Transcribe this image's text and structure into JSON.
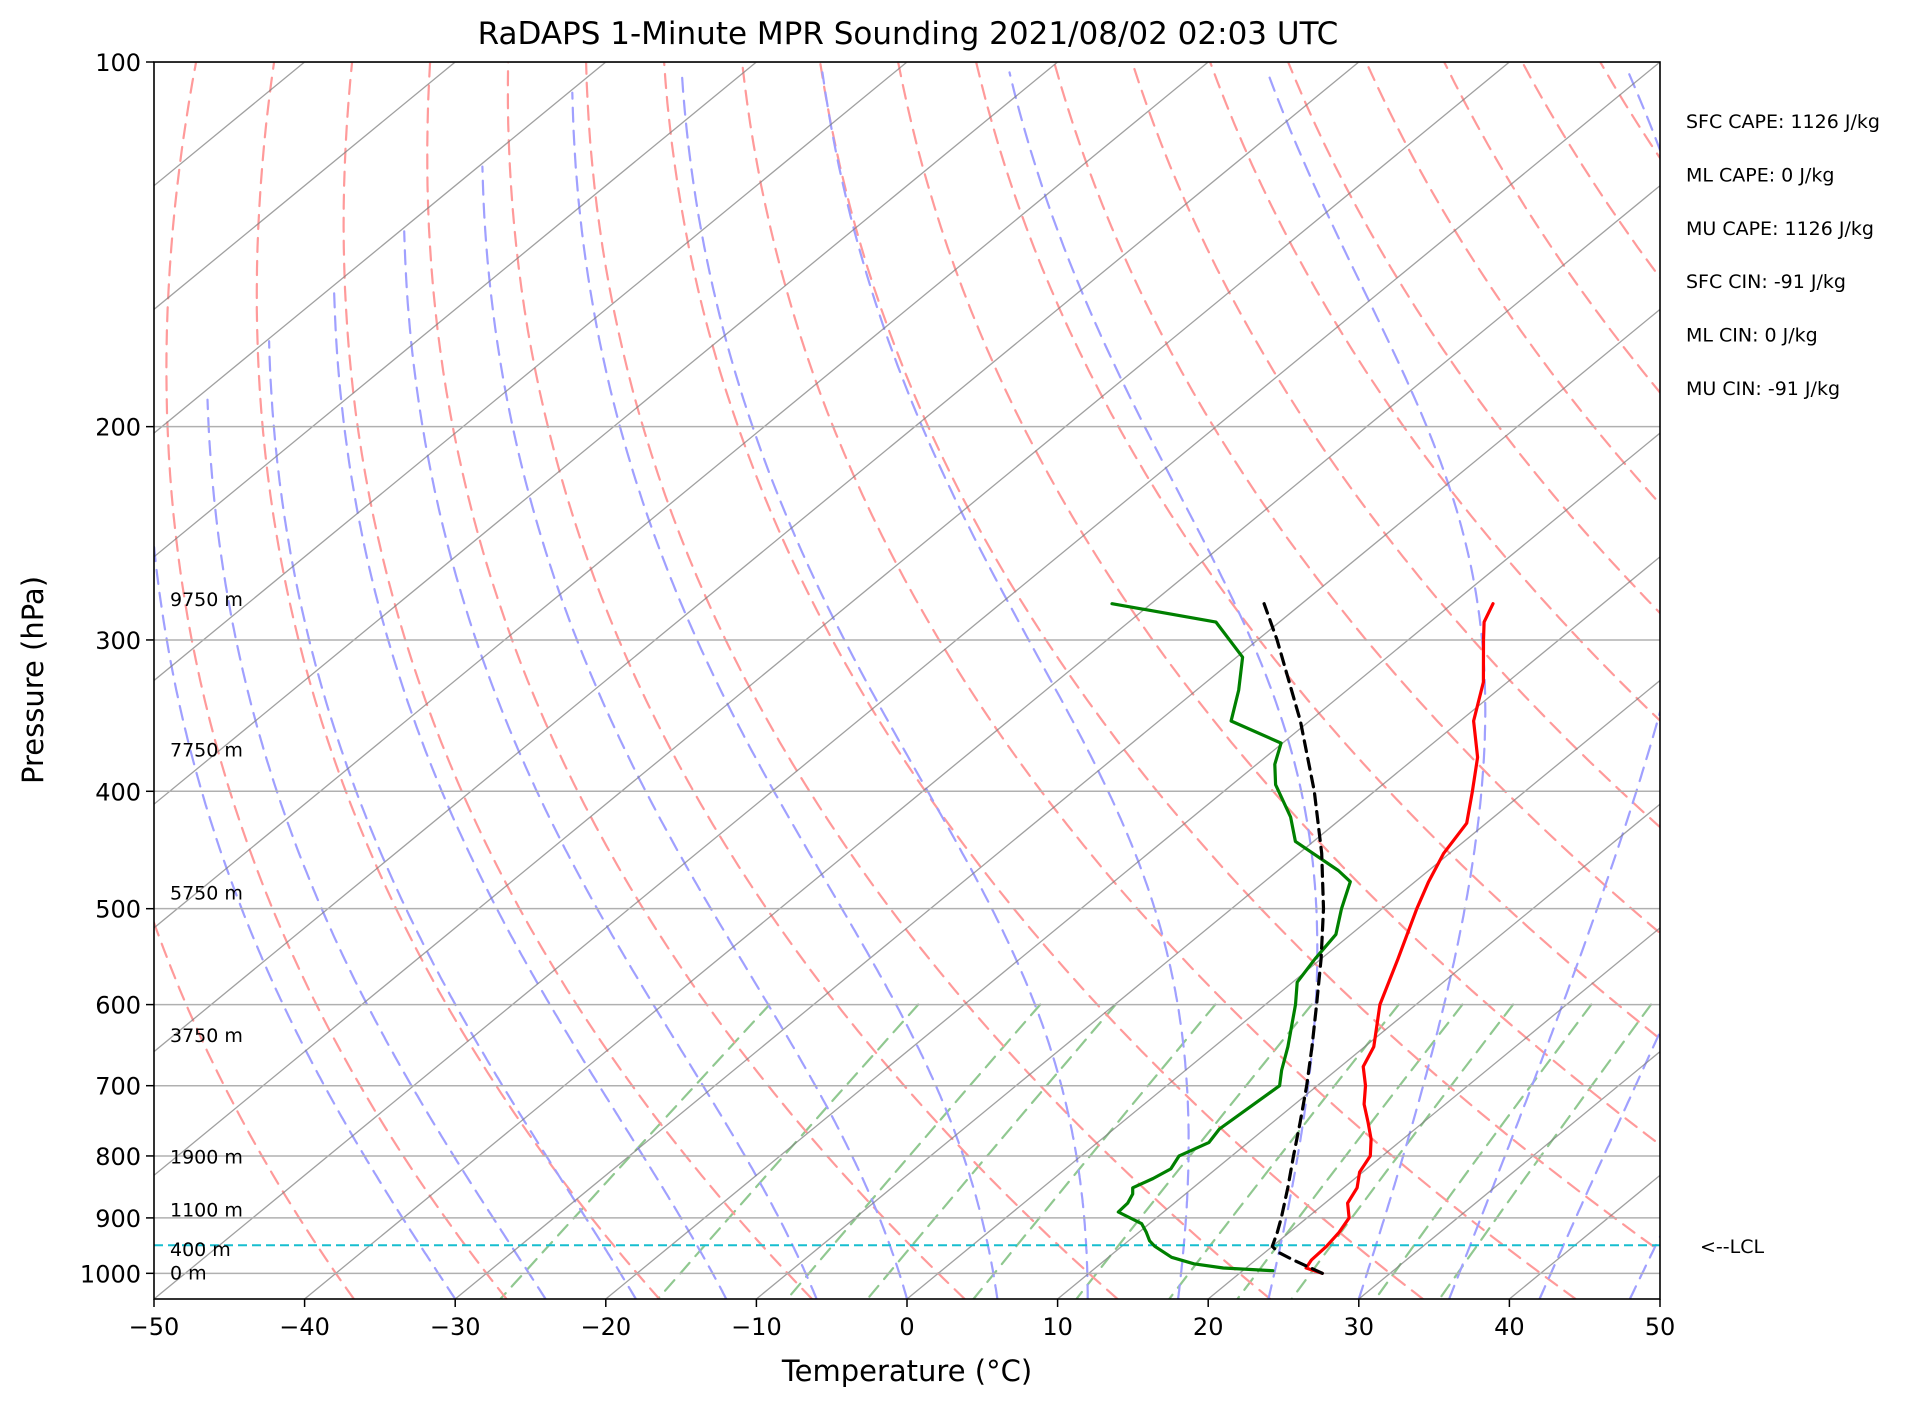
{
  "chart_data": {
    "type": "skew-t",
    "title": "RaDAPS 1-Minute MPR Sounding 2021/08/02 02:03 UTC",
    "xlabel": "Temperature (°C)",
    "ylabel": "Pressure (hPa)",
    "xlim": [
      -50,
      50
    ],
    "ylim": [
      1050,
      100
    ],
    "y_scale": "log",
    "x_ticks": [
      "−50",
      "−40",
      "−30",
      "−20",
      "−10",
      "0",
      "10",
      "20",
      "30",
      "40",
      "50"
    ],
    "y_ticks": [
      "100",
      "200",
      "300",
      "400",
      "500",
      "600",
      "700",
      "800",
      "900",
      "1000"
    ],
    "grid": true,
    "colors": {
      "temperature": "#ff0000",
      "dewpoint": "#008000",
      "parcel": "#000000",
      "dry_adiabats": "#ff9a9a",
      "moist_adiabats": "#a0a0ff",
      "mixing_ratio": "#90c890",
      "isotherms": "#808080",
      "lcl_line": "#17becf"
    },
    "series": [
      {
        "name": "",
        "role": "temperature",
        "points": [
          [
            1000,
            25.5
          ],
          [
            990,
            24.0
          ],
          [
            975,
            23.7
          ],
          [
            950,
            23.6
          ],
          [
            925,
            23.3
          ],
          [
            900,
            22.8
          ],
          [
            875,
            21.5
          ],
          [
            850,
            20.9
          ],
          [
            825,
            19.8
          ],
          [
            800,
            19.2
          ],
          [
            775,
            17.9
          ],
          [
            750,
            16.3
          ],
          [
            725,
            14.6
          ],
          [
            700,
            13.2
          ],
          [
            675,
            11.5
          ],
          [
            650,
            10.6
          ],
          [
            600,
            7.6
          ],
          [
            550,
            5.1
          ],
          [
            500,
            2.3
          ],
          [
            475,
            0.9
          ],
          [
            450,
            -0.4
          ],
          [
            425,
            -1.3
          ],
          [
            400,
            -3.5
          ],
          [
            375,
            -5.9
          ],
          [
            350,
            -9.1
          ],
          [
            325,
            -11.6
          ],
          [
            300,
            -15.0
          ],
          [
            290,
            -16.4
          ],
          [
            280,
            -17.3
          ]
        ]
      },
      {
        "name": "",
        "role": "dewpoint",
        "points": [
          [
            995,
            22.0
          ],
          [
            990,
            18.5
          ],
          [
            982,
            16.2
          ],
          [
            970,
            14.2
          ],
          [
            950,
            12.2
          ],
          [
            940,
            11.4
          ],
          [
            925,
            10.5
          ],
          [
            910,
            9.5
          ],
          [
            890,
            7.0
          ],
          [
            875,
            6.9
          ],
          [
            860,
            6.5
          ],
          [
            850,
            6.0
          ],
          [
            835,
            6.6
          ],
          [
            820,
            7.0
          ],
          [
            800,
            6.5
          ],
          [
            780,
            7.4
          ],
          [
            760,
            7.0
          ],
          [
            700,
            7.5
          ],
          [
            680,
            6.4
          ],
          [
            650,
            4.9
          ],
          [
            600,
            2.0
          ],
          [
            575,
            0.3
          ],
          [
            550,
            -0.4
          ],
          [
            525,
            -1.0
          ],
          [
            500,
            -2.7
          ],
          [
            475,
            -4.3
          ],
          [
            465,
            -6.0
          ],
          [
            440,
            -11.2
          ],
          [
            420,
            -13.5
          ],
          [
            395,
            -17.1
          ],
          [
            380,
            -18.8
          ],
          [
            365,
            -20.1
          ],
          [
            350,
            -25.2
          ],
          [
            330,
            -27.2
          ],
          [
            310,
            -29.6
          ],
          [
            290,
            -34.2
          ],
          [
            280,
            -42.6
          ]
        ]
      },
      {
        "name": "",
        "role": "parcel",
        "points": [
          [
            1000,
            25.5
          ],
          [
            975,
            22.5
          ],
          [
            960,
            20.8
          ],
          [
            950,
            20.0
          ],
          [
            925,
            19.2
          ],
          [
            900,
            18.3
          ],
          [
            850,
            16.3
          ],
          [
            800,
            14.1
          ],
          [
            750,
            11.8
          ],
          [
            700,
            9.3
          ],
          [
            650,
            6.5
          ],
          [
            600,
            3.4
          ],
          [
            550,
            0.0
          ],
          [
            500,
            -3.9
          ],
          [
            450,
            -8.5
          ],
          [
            400,
            -14.0
          ],
          [
            350,
            -20.6
          ],
          [
            300,
            -28.7
          ],
          [
            280,
            -32.5
          ]
        ]
      }
    ],
    "height_labels": [
      {
        "text": "0 m",
        "p": 1000
      },
      {
        "text": "400 m",
        "p": 957
      },
      {
        "text": "1100 m",
        "p": 887
      },
      {
        "text": "1900 m",
        "p": 802
      },
      {
        "text": "3750 m",
        "p": 637
      },
      {
        "text": "5750 m",
        "p": 486
      },
      {
        "text": "7750 m",
        "p": 370
      },
      {
        "text": "9750 m",
        "p": 278
      }
    ],
    "lcl": {
      "p": 948,
      "label": "<--LCL"
    },
    "indices": [
      "SFC CAPE: 1126 J/kg",
      "ML CAPE: 0 J/kg",
      "MU CAPE: 1126 J/kg",
      "SFC CIN: -91 J/kg",
      "ML CIN: 0 J/kg",
      "MU CIN: -91 J/kg"
    ]
  }
}
